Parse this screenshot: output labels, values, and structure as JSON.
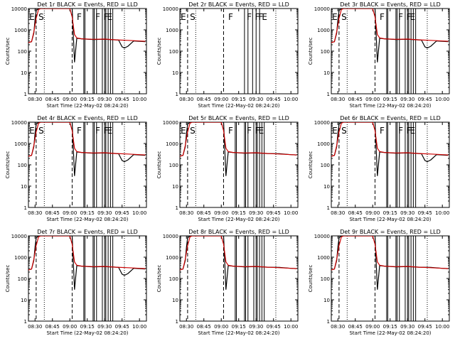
{
  "chart_data": [
    {
      "type": "line",
      "title": "Det 1r BLACK = Events, RED = LLD",
      "xlabel": "Start Time (22-May-02 08:24:20)",
      "ylabel": "Counts/sec",
      "yscale": "log",
      "ylim": [
        1,
        10000
      ],
      "xlim": [
        "08:24:20",
        "10:06"
      ],
      "x_ticks": [
        "08:30",
        "08:45",
        "09:00",
        "09:15",
        "09:30",
        "09:45",
        "10:00"
      ],
      "y_ticks": [
        "1",
        "10",
        "100",
        "1000",
        "10000"
      ],
      "markers": [
        "E",
        "S",
        "F",
        "F",
        "F",
        "E"
      ],
      "series": [
        {
          "name": "Events",
          "color": "#000000",
          "x": [
            "08:24",
            "08:27",
            "08:29",
            "08:30",
            "08:31",
            "08:33",
            "08:35",
            "08:37",
            "09:02",
            "09:04",
            "09:06",
            "09:10",
            "09:20",
            "09:30",
            "09:40",
            "09:42",
            "09:45",
            "09:47",
            "09:50",
            "09:55",
            "10:00",
            "10:05"
          ],
          "y": [
            250,
            280,
            700,
            3000,
            8000,
            10000,
            10000,
            10000,
            10000,
            30,
            400,
            380,
            350,
            360,
            340,
            330,
            160,
            140,
            170,
            300,
            290,
            280
          ]
        },
        {
          "name": "LLD",
          "color": "#cc0000",
          "x": [
            "08:24",
            "08:27",
            "08:29",
            "08:31",
            "08:33",
            "08:35",
            "09:00",
            "09:02",
            "09:04",
            "09:06",
            "09:10",
            "09:20",
            "09:30",
            "09:40",
            "09:50",
            "10:00",
            "10:05"
          ],
          "y": [
            250,
            280,
            800,
            3500,
            9000,
            10000,
            10000,
            4000,
            600,
            420,
            380,
            360,
            370,
            340,
            320,
            300,
            290
          ]
        }
      ]
    },
    {
      "type": "line",
      "title": "Det 2r BLACK = Events, RED = LLD",
      "xlabel": "Start Time (22-May-02 08:24:20)",
      "ylabel": "Counts/sec",
      "yscale": "log",
      "ylim": [
        1,
        10000
      ],
      "xlim": [
        "08:24:20",
        "10:06"
      ],
      "x_ticks": [
        "08:30",
        "08:45",
        "09:00",
        "09:15",
        "09:30",
        "09:45",
        "10:00"
      ],
      "y_ticks": [
        "1",
        "10",
        "100",
        "1000",
        "10000"
      ],
      "markers": [
        "E",
        "S",
        "F",
        "F",
        "F",
        "F",
        "E"
      ],
      "series": []
    },
    {
      "type": "line",
      "title": "Det 3r BLACK = Events, RED = LLD",
      "xlabel": "Start Time (22-May-02 08:24:20)",
      "ylabel": "Counts/sec",
      "yscale": "log",
      "ylim": [
        1,
        10000
      ],
      "xlim": [
        "08:24:20",
        "10:06"
      ],
      "x_ticks": [
        "08:30",
        "08:45",
        "09:00",
        "09:15",
        "09:30",
        "09:45",
        "10:00"
      ],
      "y_ticks": [
        "1",
        "10",
        "100",
        "1000",
        "10000"
      ],
      "markers": [
        "E",
        "S",
        "F",
        "F",
        "F",
        "E"
      ],
      "series": [
        {
          "name": "Events",
          "color": "#000000",
          "x": [
            "08:24",
            "08:27",
            "08:29",
            "08:30",
            "08:31",
            "08:33",
            "08:35",
            "08:37",
            "09:02",
            "09:04",
            "09:06",
            "09:10",
            "09:20",
            "09:30",
            "09:40",
            "09:42",
            "09:45",
            "09:47",
            "09:50",
            "09:55",
            "10:00",
            "10:05"
          ],
          "y": [
            250,
            280,
            700,
            3000,
            8000,
            10000,
            10000,
            10000,
            10000,
            30,
            400,
            380,
            350,
            360,
            340,
            330,
            160,
            140,
            170,
            300,
            290,
            280
          ]
        },
        {
          "name": "LLD",
          "color": "#cc0000",
          "x": [
            "08:24",
            "08:27",
            "08:29",
            "08:31",
            "08:33",
            "08:35",
            "09:00",
            "09:02",
            "09:04",
            "09:06",
            "09:10",
            "09:20",
            "09:30",
            "09:40",
            "09:50",
            "10:00",
            "10:05"
          ],
          "y": [
            250,
            280,
            800,
            3500,
            9000,
            10000,
            10000,
            4000,
            600,
            420,
            380,
            360,
            370,
            340,
            320,
            300,
            290
          ]
        }
      ]
    },
    {
      "type": "line",
      "title": "Det 4r BLACK = Events, RED = LLD",
      "xlabel": "Start Time (22-May-02 08:24:20)",
      "ylabel": "Counts/sec",
      "yscale": "log",
      "ylim": [
        1,
        10000
      ],
      "xlim": [
        "08:24:20",
        "10:06"
      ],
      "x_ticks": [
        "08:30",
        "08:45",
        "09:00",
        "09:15",
        "09:30",
        "09:45",
        "10:00"
      ],
      "y_ticks": [
        "1",
        "10",
        "100",
        "1000",
        "10000"
      ],
      "markers": [
        "E",
        "S",
        "F",
        "F",
        "F",
        "E"
      ],
      "series": [
        {
          "name": "Events",
          "color": "#000000",
          "x": [
            "08:24",
            "08:27",
            "08:29",
            "08:30",
            "08:31",
            "08:33",
            "08:35",
            "08:37",
            "09:02",
            "09:04",
            "09:06",
            "09:10",
            "09:20",
            "09:30",
            "09:40",
            "09:42",
            "09:45",
            "09:47",
            "09:50",
            "09:55",
            "10:00",
            "10:05"
          ],
          "y": [
            250,
            280,
            700,
            3000,
            8000,
            10000,
            10000,
            10000,
            10000,
            30,
            400,
            380,
            350,
            360,
            340,
            330,
            160,
            140,
            170,
            300,
            290,
            280
          ]
        },
        {
          "name": "LLD",
          "color": "#cc0000",
          "x": [
            "08:24",
            "08:27",
            "08:29",
            "08:31",
            "08:33",
            "08:35",
            "09:00",
            "09:02",
            "09:04",
            "09:06",
            "09:10",
            "09:20",
            "09:30",
            "09:40",
            "09:50",
            "10:00",
            "10:05"
          ],
          "y": [
            250,
            280,
            800,
            3500,
            9000,
            10000,
            10000,
            4000,
            600,
            420,
            380,
            360,
            370,
            340,
            320,
            300,
            290
          ]
        }
      ]
    },
    {
      "type": "line",
      "title": "Det 5r BLACK = Events, RED = LLD",
      "xlabel": "Start Time (22-May-02 08:24:20)",
      "ylabel": "Counts/sec",
      "yscale": "log",
      "ylim": [
        1,
        10000
      ],
      "xlim": [
        "08:24:20",
        "10:06"
      ],
      "x_ticks": [
        "08:30",
        "08:45",
        "09:00",
        "09:15",
        "09:30",
        "09:45",
        "10:00"
      ],
      "y_ticks": [
        "1",
        "10",
        "100",
        "1000",
        "10000"
      ],
      "markers": [
        "E",
        "S",
        "F",
        "F",
        "F",
        "E"
      ],
      "series": [
        {
          "name": "Events",
          "color": "#000000",
          "x": [
            "08:24",
            "08:27",
            "08:29",
            "08:30",
            "08:31",
            "08:33",
            "08:35",
            "08:37",
            "09:02",
            "09:04",
            "09:06",
            "09:10",
            "09:20",
            "09:30",
            "09:40",
            "09:50",
            "10:00",
            "10:05"
          ],
          "y": [
            250,
            280,
            700,
            3000,
            8000,
            10000,
            10000,
            10000,
            10000,
            30,
            400,
            380,
            350,
            360,
            340,
            330,
            300,
            290
          ]
        },
        {
          "name": "LLD",
          "color": "#cc0000",
          "x": [
            "08:24",
            "08:27",
            "08:29",
            "08:31",
            "08:33",
            "08:35",
            "09:00",
            "09:02",
            "09:04",
            "09:06",
            "09:10",
            "09:20",
            "09:30",
            "09:40",
            "09:50",
            "10:00",
            "10:05"
          ],
          "y": [
            250,
            280,
            800,
            3500,
            9000,
            10000,
            10000,
            4000,
            600,
            420,
            380,
            360,
            370,
            340,
            320,
            300,
            290
          ]
        }
      ]
    },
    {
      "type": "line",
      "title": "Det 6r BLACK = Events, RED = LLD",
      "xlabel": "Start Time (22-May-02 08:24:20)",
      "ylabel": "Counts/sec",
      "yscale": "log",
      "ylim": [
        1,
        10000
      ],
      "xlim": [
        "08:24:20",
        "10:06"
      ],
      "x_ticks": [
        "08:30",
        "08:45",
        "09:00",
        "09:15",
        "09:30",
        "09:45",
        "10:00"
      ],
      "y_ticks": [
        "1",
        "10",
        "100",
        "1000",
        "10000"
      ],
      "markers": [
        "E",
        "S",
        "F",
        "F",
        "F",
        "E"
      ],
      "series": [
        {
          "name": "Events",
          "color": "#000000",
          "x": [
            "08:24",
            "08:27",
            "08:29",
            "08:30",
            "08:31",
            "08:33",
            "08:35",
            "08:37",
            "09:02",
            "09:04",
            "09:06",
            "09:10",
            "09:20",
            "09:30",
            "09:40",
            "09:42",
            "09:45",
            "09:47",
            "09:50",
            "09:55",
            "10:00",
            "10:05"
          ],
          "y": [
            250,
            280,
            700,
            3000,
            8000,
            10000,
            10000,
            10000,
            10000,
            30,
            400,
            380,
            350,
            360,
            340,
            330,
            160,
            140,
            170,
            300,
            290,
            280
          ]
        },
        {
          "name": "LLD",
          "color": "#cc0000",
          "x": [
            "08:24",
            "08:27",
            "08:29",
            "08:31",
            "08:33",
            "08:35",
            "09:00",
            "09:02",
            "09:04",
            "09:06",
            "09:10",
            "09:20",
            "09:30",
            "09:40",
            "09:50",
            "10:00",
            "10:05"
          ],
          "y": [
            250,
            280,
            800,
            3500,
            9000,
            10000,
            10000,
            4000,
            600,
            420,
            380,
            360,
            370,
            340,
            320,
            300,
            290
          ]
        }
      ]
    },
    {
      "type": "line",
      "title": "Det 7r BLACK = Events, RED = LLD",
      "xlabel": "Start Time (22-May-02 08:24:20)",
      "ylabel": "Counts/sec",
      "yscale": "log",
      "ylim": [
        1,
        10000
      ],
      "xlim": [
        "08:24:20",
        "10:06"
      ],
      "x_ticks": [
        "08:30",
        "08:45",
        "09:00",
        "09:15",
        "09:30",
        "09:45",
        "10:00"
      ],
      "y_ticks": [
        "1",
        "10",
        "100",
        "1000",
        "10000"
      ],
      "markers": [],
      "series": [
        {
          "name": "Events",
          "color": "#000000",
          "x": [
            "08:24",
            "08:27",
            "08:29",
            "08:30",
            "08:31",
            "08:33",
            "08:35",
            "08:37",
            "09:02",
            "09:04",
            "09:06",
            "09:10",
            "09:20",
            "09:30",
            "09:40",
            "09:42",
            "09:45",
            "09:47",
            "09:50",
            "09:55",
            "10:00",
            "10:05"
          ],
          "y": [
            250,
            280,
            700,
            3000,
            8000,
            10000,
            10000,
            10000,
            10000,
            30,
            400,
            380,
            350,
            360,
            340,
            330,
            160,
            140,
            170,
            300,
            290,
            280
          ]
        },
        {
          "name": "LLD",
          "color": "#cc0000",
          "x": [
            "08:24",
            "08:27",
            "08:29",
            "08:31",
            "08:33",
            "08:35",
            "09:00",
            "09:02",
            "09:04",
            "09:06",
            "09:10",
            "09:20",
            "09:30",
            "09:40",
            "09:50",
            "10:00",
            "10:05"
          ],
          "y": [
            250,
            280,
            800,
            3500,
            9000,
            10000,
            10000,
            4000,
            600,
            420,
            380,
            360,
            370,
            340,
            320,
            300,
            290
          ]
        }
      ]
    },
    {
      "type": "line",
      "title": "Det 8r BLACK = Events, RED = LLD",
      "xlabel": "Start Time (22-May-02 08:24:20)",
      "ylabel": "Counts/sec",
      "yscale": "log",
      "ylim": [
        1,
        10000
      ],
      "xlim": [
        "08:24:20",
        "10:06"
      ],
      "x_ticks": [
        "08:30",
        "08:45",
        "09:00",
        "09:15",
        "09:30",
        "09:45",
        "10:00"
      ],
      "y_ticks": [
        "1",
        "10",
        "100",
        "1000",
        "10000"
      ],
      "markers": [],
      "series": [
        {
          "name": "Events",
          "color": "#000000",
          "x": [
            "08:24",
            "08:27",
            "08:29",
            "08:30",
            "08:31",
            "08:33",
            "08:35",
            "08:37",
            "09:02",
            "09:04",
            "09:06",
            "09:10",
            "09:20",
            "09:30",
            "09:40",
            "09:50",
            "10:00",
            "10:05"
          ],
          "y": [
            250,
            280,
            700,
            3000,
            8000,
            10000,
            10000,
            10000,
            10000,
            30,
            400,
            380,
            350,
            360,
            340,
            330,
            300,
            290
          ]
        },
        {
          "name": "LLD",
          "color": "#cc0000",
          "x": [
            "08:24",
            "08:27",
            "08:29",
            "08:31",
            "08:33",
            "08:35",
            "09:00",
            "09:02",
            "09:04",
            "09:06",
            "09:10",
            "09:20",
            "09:30",
            "09:40",
            "09:50",
            "10:00",
            "10:05"
          ],
          "y": [
            250,
            280,
            800,
            3500,
            9000,
            10000,
            10000,
            4000,
            600,
            420,
            380,
            360,
            370,
            340,
            320,
            300,
            290
          ]
        }
      ]
    },
    {
      "type": "line",
      "title": "Det 9r BLACK = Events, RED = LLD",
      "xlabel": "Start Time (22-May-02 08:24:20)",
      "ylabel": "Counts/sec",
      "yscale": "log",
      "ylim": [
        1,
        10000
      ],
      "xlim": [
        "08:24:20",
        "10:06"
      ],
      "x_ticks": [
        "08:30",
        "08:45",
        "09:00",
        "09:15",
        "09:30",
        "09:45",
        "10:00"
      ],
      "y_ticks": [
        "1",
        "10",
        "100",
        "1000",
        "10000"
      ],
      "markers": [],
      "series": [
        {
          "name": "Events",
          "color": "#000000",
          "x": [
            "08:24",
            "08:27",
            "08:29",
            "08:30",
            "08:31",
            "08:33",
            "08:35",
            "08:37",
            "09:02",
            "09:04",
            "09:06",
            "09:10",
            "09:20",
            "09:30",
            "09:40",
            "09:50",
            "10:00",
            "10:05"
          ],
          "y": [
            250,
            280,
            700,
            3000,
            8000,
            10000,
            10000,
            10000,
            10000,
            30,
            400,
            380,
            350,
            360,
            340,
            330,
            300,
            290
          ]
        },
        {
          "name": "LLD",
          "color": "#cc0000",
          "x": [
            "08:24",
            "08:27",
            "08:29",
            "08:31",
            "08:33",
            "08:35",
            "09:00",
            "09:02",
            "09:04",
            "09:06",
            "09:10",
            "09:20",
            "09:30",
            "09:40",
            "09:50",
            "10:00",
            "10:05"
          ],
          "y": [
            250,
            280,
            800,
            3500,
            9000,
            10000,
            10000,
            4000,
            600,
            420,
            380,
            360,
            370,
            340,
            320,
            300,
            290
          ]
        }
      ]
    }
  ]
}
